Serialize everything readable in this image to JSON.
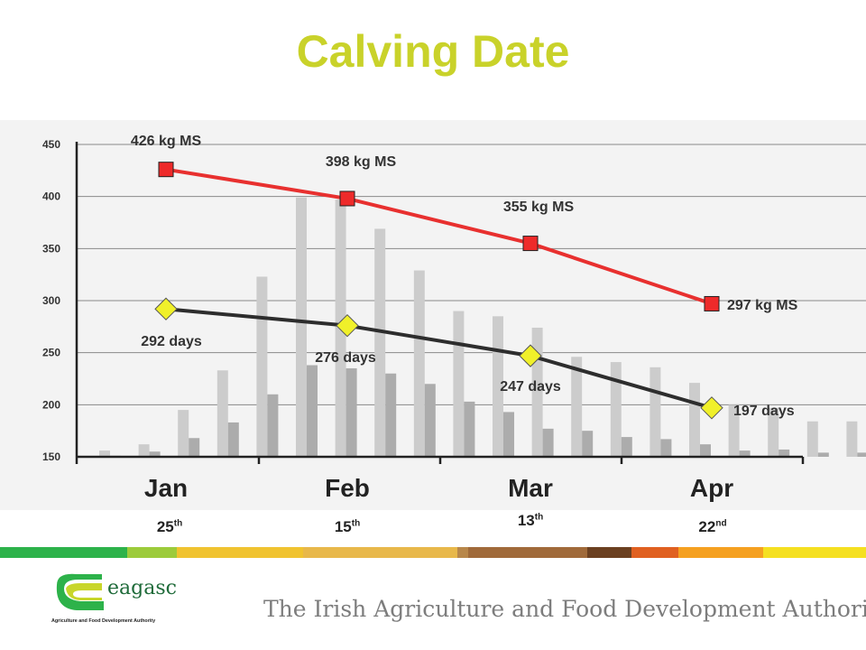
{
  "title": "Calving Date",
  "chart_data": {
    "type": "bar+line",
    "y_axis": {
      "ticks": [
        150,
        200,
        250,
        300,
        350,
        400,
        450
      ],
      "ylim": [
        150,
        450
      ],
      "grid": true
    },
    "x_axis": {
      "categories": [
        "Jan",
        "Feb",
        "Mar",
        "Apr"
      ]
    },
    "bars": {
      "light": [
        156,
        162,
        195,
        233,
        323,
        399,
        397,
        369,
        329,
        290,
        285,
        274,
        246,
        241,
        236,
        221,
        200,
        197,
        184,
        184
      ],
      "dark": [
        151,
        155,
        168,
        183,
        210,
        238,
        235,
        230,
        220,
        203,
        193,
        177,
        175,
        169,
        167,
        162,
        156,
        157,
        154,
        154
      ]
    },
    "series": [
      {
        "label_unit": "kg MS",
        "color": "#e8302f",
        "marker": "square",
        "points": [
          {
            "x": "Jan",
            "y": 426,
            "label": "426 kg MS"
          },
          {
            "x": "Feb",
            "y": 398,
            "label": "398 kg MS"
          },
          {
            "x": "Mar",
            "y": 355,
            "label": "355 kg MS"
          },
          {
            "x": "Apr",
            "y": 297,
            "label": "297 kg MS"
          }
        ]
      },
      {
        "label_unit": "days",
        "color": "#2d2d2d",
        "marker": "diamond",
        "points": [
          {
            "x": "Jan",
            "y": 292,
            "label": "292 days"
          },
          {
            "x": "Feb",
            "y": 276,
            "label": "276 days"
          },
          {
            "x": "Mar",
            "y": 247,
            "label": "247 days"
          },
          {
            "x": "Apr",
            "y": 197,
            "label": "197 days"
          }
        ]
      }
    ],
    "colors": {
      "kg_line": "#e8302f",
      "kg_marker": "#ee2a2a",
      "days_line": "#2d2d2d",
      "days_marker": "#f0f02a",
      "bar_light": "#cccccc",
      "bar_dark": "#acacac"
    }
  },
  "calving_dates": [
    {
      "day": "25",
      "suffix": "th"
    },
    {
      "day": "15",
      "suffix": "th"
    },
    {
      "day": "13",
      "suffix": "th"
    },
    {
      "day": "22",
      "suffix": "nd"
    }
  ],
  "footer": {
    "stripe_colors": [
      "#2db24a",
      "#9ccb3b",
      "#f0c330",
      "#e8b84a",
      "#b8874a",
      "#a06a3a",
      "#6b4020",
      "#e06020",
      "#f5a020",
      "#f5e020",
      "#e8e870"
    ],
    "logo_text": "eagasc",
    "logo_subtext": "Agriculture and Food Development Authority",
    "tagline": "The Irish Agriculture and Food Development Authority"
  }
}
